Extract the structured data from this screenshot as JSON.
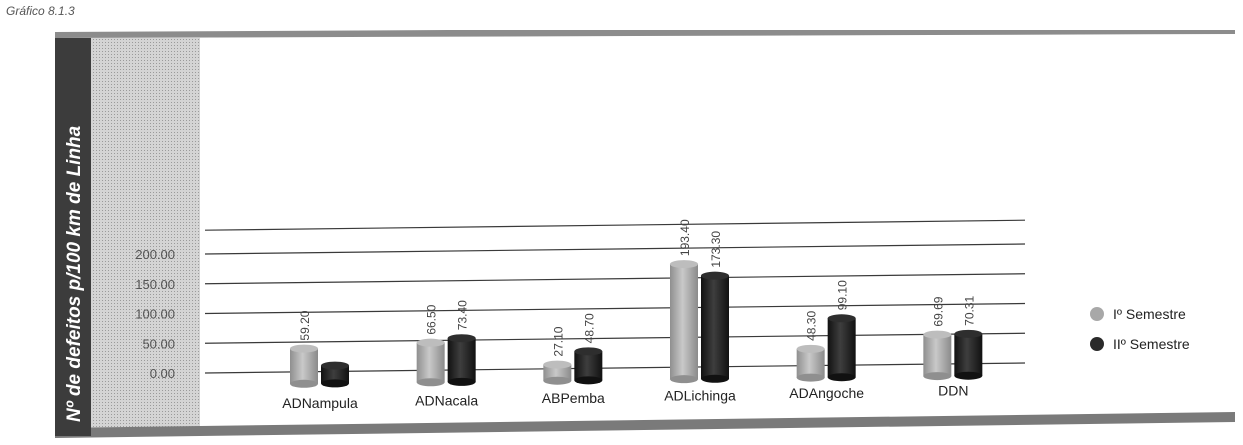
{
  "page_label": "Gráfico 8.1.3",
  "colors": {
    "series1": "#a8a8a8",
    "series2": "#2a2a2a",
    "gridline": "#3a3a3a",
    "axis_band": "#3c3c3c",
    "shaded": "#c7c7c7"
  },
  "chart_data": {
    "type": "bar",
    "title": "",
    "ylabel": "Nº de defeitos p/100 km de Linha",
    "xlabel": "",
    "categories": [
      "ADNampula",
      "ADNacala",
      "ABPemba",
      "ADLichinga",
      "ADAngoche",
      "DDN"
    ],
    "series": [
      {
        "name": "Iº Semestre",
        "values": [
          59.2,
          66.5,
          27.1,
          193.4,
          48.3,
          69.69
        ],
        "labels": [
          "59.20",
          "66.50",
          "27.10",
          "193.40",
          "48.30",
          "69.69"
        ]
      },
      {
        "name": "IIº Semestre",
        "values": [
          30.0,
          73.4,
          48.7,
          173.3,
          99.1,
          70.31
        ],
        "labels": [
          "",
          "73.40",
          "48.70",
          "173.30",
          "99.10",
          "70.31"
        ]
      }
    ],
    "y_ticks": [
      "0.00",
      "50.00",
      "100.00",
      "150.00",
      "200.00"
    ],
    "ylim": [
      0,
      240
    ],
    "grid": true,
    "legend_position": "right"
  }
}
